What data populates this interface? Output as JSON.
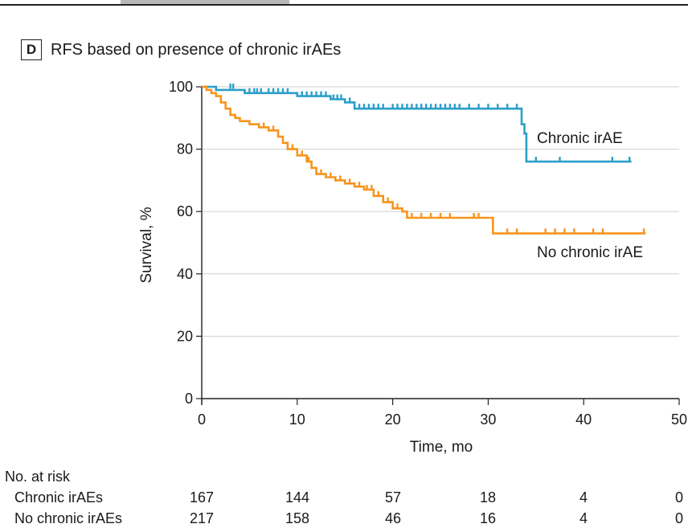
{
  "panel": {
    "letter": "D",
    "title": "RFS based on presence of chronic irAEs"
  },
  "chart_data": {
    "type": "line",
    "title": "RFS based on presence of chronic irAEs",
    "xlabel": "Time, mo",
    "ylabel": "Survival, %",
    "xlim": [
      0,
      50
    ],
    "ylim": [
      0,
      100
    ],
    "xticks": [
      0,
      10,
      20,
      30,
      40,
      50
    ],
    "yticks": [
      0,
      20,
      40,
      60,
      80,
      100
    ],
    "grid": "horizontal",
    "series": [
      {
        "name": "Chronic irAE",
        "color": "#2a9fc9",
        "steps": [
          [
            0,
            100
          ],
          [
            1.5,
            100
          ],
          [
            1.5,
            99
          ],
          [
            4.5,
            99
          ],
          [
            4.5,
            98
          ],
          [
            10,
            98
          ],
          [
            10,
            97
          ],
          [
            13.5,
            97
          ],
          [
            13.5,
            96
          ],
          [
            15,
            96
          ],
          [
            15,
            95
          ],
          [
            16,
            95
          ],
          [
            16,
            93
          ],
          [
            33.5,
            93
          ],
          [
            33.5,
            88
          ],
          [
            33.8,
            88
          ],
          [
            33.8,
            85
          ],
          [
            34,
            85
          ],
          [
            34,
            76
          ],
          [
            45,
            76
          ]
        ],
        "censored": [
          [
            3,
            99.5
          ],
          [
            3.3,
            99.5
          ],
          [
            5,
            98
          ],
          [
            5.5,
            98
          ],
          [
            5.8,
            98
          ],
          [
            6.2,
            98
          ],
          [
            7,
            98
          ],
          [
            7.5,
            98
          ],
          [
            8,
            98
          ],
          [
            8.5,
            98
          ],
          [
            9,
            98
          ],
          [
            10.5,
            97
          ],
          [
            11,
            97
          ],
          [
            11.5,
            97
          ],
          [
            12,
            97
          ],
          [
            12.5,
            97
          ],
          [
            13,
            97
          ],
          [
            13.8,
            96
          ],
          [
            14.2,
            96
          ],
          [
            14.6,
            96
          ],
          [
            15.5,
            95
          ],
          [
            16.5,
            93
          ],
          [
            17,
            93
          ],
          [
            17.5,
            93
          ],
          [
            18,
            93
          ],
          [
            18.5,
            93
          ],
          [
            19,
            93
          ],
          [
            20,
            93
          ],
          [
            20.5,
            93
          ],
          [
            21,
            93
          ],
          [
            21.5,
            93
          ],
          [
            22,
            93
          ],
          [
            22.5,
            93
          ],
          [
            23,
            93
          ],
          [
            23.5,
            93
          ],
          [
            24,
            93
          ],
          [
            24.5,
            93
          ],
          [
            25,
            93
          ],
          [
            25.5,
            93
          ],
          [
            26,
            93
          ],
          [
            26.5,
            93
          ],
          [
            27,
            93
          ],
          [
            28,
            93
          ],
          [
            29,
            93
          ],
          [
            30,
            93
          ],
          [
            31,
            93
          ],
          [
            32,
            93
          ],
          [
            33,
            93
          ],
          [
            35,
            76
          ],
          [
            37.5,
            76
          ],
          [
            43,
            76
          ],
          [
            44.8,
            76
          ]
        ],
        "end_label": "Chronic irAE"
      },
      {
        "name": "No chronic irAE",
        "color": "#f7941d",
        "steps": [
          [
            0,
            100
          ],
          [
            0.5,
            100
          ],
          [
            0.5,
            99
          ],
          [
            1,
            99
          ],
          [
            1,
            98
          ],
          [
            1.5,
            98
          ],
          [
            1.5,
            97
          ],
          [
            2,
            97
          ],
          [
            2,
            95
          ],
          [
            2.5,
            95
          ],
          [
            2.5,
            93
          ],
          [
            3,
            93
          ],
          [
            3,
            91
          ],
          [
            3.5,
            91
          ],
          [
            3.5,
            90
          ],
          [
            4,
            90
          ],
          [
            4,
            89
          ],
          [
            5,
            89
          ],
          [
            5,
            88
          ],
          [
            6,
            88
          ],
          [
            6,
            87
          ],
          [
            7,
            87
          ],
          [
            7,
            86
          ],
          [
            8,
            86
          ],
          [
            8,
            84
          ],
          [
            8.5,
            84
          ],
          [
            8.5,
            82
          ],
          [
            9,
            82
          ],
          [
            9,
            80
          ],
          [
            10,
            80
          ],
          [
            10,
            78
          ],
          [
            11,
            78
          ],
          [
            11,
            76
          ],
          [
            11.5,
            76
          ],
          [
            11.5,
            74
          ],
          [
            12,
            74
          ],
          [
            12,
            72
          ],
          [
            13,
            72
          ],
          [
            13,
            71
          ],
          [
            14,
            71
          ],
          [
            14,
            70
          ],
          [
            15,
            70
          ],
          [
            15,
            69
          ],
          [
            16,
            69
          ],
          [
            16,
            68
          ],
          [
            17,
            68
          ],
          [
            17,
            67
          ],
          [
            18,
            67
          ],
          [
            18,
            65
          ],
          [
            19,
            65
          ],
          [
            19,
            63
          ],
          [
            20,
            63
          ],
          [
            20,
            61
          ],
          [
            21,
            61
          ],
          [
            21,
            60
          ],
          [
            21.5,
            60
          ],
          [
            21.5,
            58
          ],
          [
            30.5,
            58
          ],
          [
            30.5,
            53
          ],
          [
            46.5,
            53
          ]
        ],
        "censored": [
          [
            6.5,
            87
          ],
          [
            7.5,
            86
          ],
          [
            9.5,
            80
          ],
          [
            10.5,
            78
          ],
          [
            11.2,
            76
          ],
          [
            12.5,
            72
          ],
          [
            13.5,
            71
          ],
          [
            14.5,
            70
          ],
          [
            15.5,
            69
          ],
          [
            16.5,
            68
          ],
          [
            17.3,
            67
          ],
          [
            17.8,
            67
          ],
          [
            18.5,
            65
          ],
          [
            19.5,
            63
          ],
          [
            20.5,
            61
          ],
          [
            22,
            58
          ],
          [
            23,
            58
          ],
          [
            24,
            58
          ],
          [
            25,
            58
          ],
          [
            26,
            58
          ],
          [
            28.5,
            58
          ],
          [
            29,
            58
          ],
          [
            32,
            53
          ],
          [
            33,
            53
          ],
          [
            36,
            53
          ],
          [
            37,
            53
          ],
          [
            38,
            53
          ],
          [
            39,
            53
          ],
          [
            41,
            53
          ],
          [
            42,
            53
          ],
          [
            46.3,
            53
          ]
        ],
        "end_label": "No chronic irAE"
      }
    ]
  },
  "at_risk": {
    "heading": "No. at risk",
    "rows": [
      {
        "label": "Chronic irAEs",
        "values": [
          "167",
          "144",
          "57",
          "18",
          "4",
          "0"
        ]
      },
      {
        "label": "No chronic irAEs",
        "values": [
          "217",
          "158",
          "46",
          "16",
          "4",
          "0"
        ]
      }
    ]
  }
}
